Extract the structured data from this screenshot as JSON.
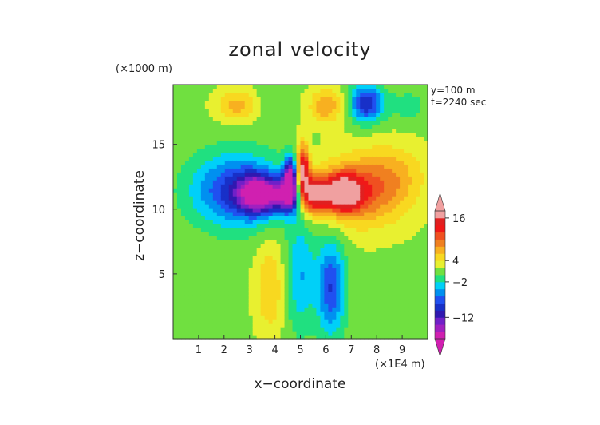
{
  "chart_data": {
    "type": "heatmap",
    "title": "zonal velocity",
    "xlabel": "x−coordinate",
    "ylabel": "z−coordinate",
    "x_unit_label": "(×1E4 m)",
    "y_unit_label": "(×1000 m)",
    "annotations": [
      "y=100 m",
      "t=2240 sec"
    ],
    "xlim": [
      0,
      10
    ],
    "ylim": [
      0,
      19.6
    ],
    "x_ticks": [
      1,
      2,
      3,
      4,
      5,
      6,
      7,
      8,
      9
    ],
    "y_ticks": [
      5,
      10,
      15
    ],
    "colorbar": {
      "tick_labels": [
        "16",
        "4",
        "−2",
        "−12"
      ],
      "tick_values": [
        16,
        4,
        -2,
        -12
      ],
      "levels": [
        -18,
        -16,
        -14,
        -12,
        -10,
        -8,
        -6,
        -4,
        -2,
        0,
        2,
        4,
        6,
        8,
        10,
        12,
        14,
        16,
        18
      ],
      "colors": [
        "#d020b0",
        "#a020c0",
        "#7020c8",
        "#3018b0",
        "#1830c8",
        "#2050f0",
        "#0090f0",
        "#00d0f8",
        "#20e080",
        "#70e040",
        "#e8f030",
        "#f8d820",
        "#f8b020",
        "#f08020",
        "#f05020",
        "#f01818",
        "#e02020",
        "#f0a0a0"
      ],
      "extend": "both"
    },
    "field": {
      "background": 1.5,
      "regions": [
        {
          "x": 5.0,
          "z": 5.0,
          "rx": 0.7,
          "rz": 5.5,
          "value": -4
        },
        {
          "x": 6.2,
          "z": 4.0,
          "rx": 0.7,
          "rz": 4.5,
          "value": -8
        },
        {
          "x": 3.8,
          "z": 4.0,
          "rx": 0.7,
          "rz": 4.5,
          "value": 6
        },
        {
          "x": 2.5,
          "z": 11.5,
          "rx": 2.2,
          "rz": 3.5,
          "value": -9
        },
        {
          "x": 3.4,
          "z": 11.2,
          "rx": 1.0,
          "rz": 1.8,
          "value": -15
        },
        {
          "x": 4.5,
          "z": 11.2,
          "rx": 0.6,
          "rz": 1.8,
          "value": -13
        },
        {
          "x": 7.5,
          "z": 11.5,
          "rx": 2.2,
          "rz": 3.5,
          "value": 10
        },
        {
          "x": 6.6,
          "z": 11.3,
          "rx": 1.0,
          "rz": 1.8,
          "value": 17
        },
        {
          "x": 5.5,
          "z": 11.2,
          "rx": 0.6,
          "rz": 1.8,
          "value": 15
        },
        {
          "x": 5.1,
          "z": 13.0,
          "rx": 0.3,
          "rz": 2.5,
          "value": 17
        },
        {
          "x": 4.6,
          "z": 12.5,
          "rx": 0.3,
          "rz": 2.0,
          "value": -14
        },
        {
          "x": 2.5,
          "z": 18.0,
          "rx": 1.0,
          "rz": 1.5,
          "value": 7
        },
        {
          "x": 3.6,
          "z": 18.2,
          "rx": 0.4,
          "rz": 1.6,
          "value": 0
        },
        {
          "x": 6.0,
          "z": 18.0,
          "rx": 0.8,
          "rz": 1.6,
          "value": 8
        },
        {
          "x": 7.6,
          "z": 18.2,
          "rx": 0.8,
          "rz": 1.8,
          "value": -10
        },
        {
          "x": 9.2,
          "z": 18.0,
          "rx": 1.0,
          "rz": 1.5,
          "value": -1
        },
        {
          "x": 8.8,
          "z": 13.0,
          "rx": 1.5,
          "rz": 2.8,
          "value": 4
        }
      ]
    }
  }
}
